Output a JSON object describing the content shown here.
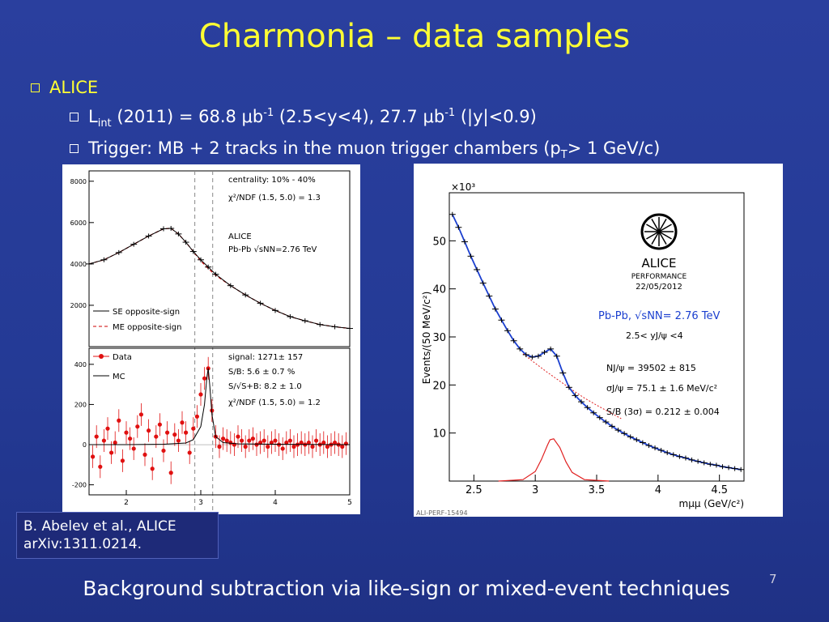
{
  "slide": {
    "title": "Charmonia – data samples",
    "bullet1": "ALICE",
    "sub1": {
      "l": "L",
      "int": "int",
      "a": " (2011) = 68.8 ",
      "mu1": "μ",
      "b1": "b",
      "exp1": "-1",
      "c": " (2.5<y<4), 27.7 ",
      "mu2": "μ",
      "b2": "b",
      "exp2": "-1",
      "d": " (|y|<0.9)"
    },
    "sub2": {
      "a": "Trigger: MB + 2 tracks in the muon trigger chambers (p",
      "t": "T",
      "b": "> 1 GeV/c)"
    },
    "citation_line1": "B. Abelev et al., ALICE",
    "citation_line2": "arXiv:1311.0214.",
    "footer": "Background subtraction via like-sign or mixed-event techniques",
    "page_number": "7",
    "colors": {
      "background": "#243a95",
      "title": "#ffff33",
      "text": "#ffffff"
    }
  },
  "chart_data": [
    {
      "type": "line",
      "panel": "left-top",
      "x_range": [
        1.5,
        5.0
      ],
      "ylim": [
        0,
        8500
      ],
      "yticks": [
        "8000",
        "6000",
        "4000",
        "2000"
      ],
      "annotations": [
        "centrality: 10% - 40%",
        "χ²/NDF (1.5, 5.0) = 1.3",
        "ALICE",
        "Pb-Pb √sNN=2.76 TeV"
      ],
      "legend": [
        "SE opposite-sign",
        "ME opposite-sign"
      ],
      "vlines": [
        2.92,
        3.16
      ],
      "series": [
        {
          "name": "SE opposite-sign",
          "x": [
            1.5,
            1.7,
            1.9,
            2.1,
            2.3,
            2.5,
            2.6,
            2.7,
            2.8,
            2.9,
            3.0,
            3.1,
            3.2,
            3.4,
            3.6,
            3.8,
            4.0,
            4.2,
            4.4,
            4.6,
            4.8,
            5.0
          ],
          "values": [
            4000,
            4200,
            4550,
            4950,
            5350,
            5700,
            5720,
            5450,
            5050,
            4600,
            4200,
            3850,
            3500,
            2950,
            2500,
            2100,
            1750,
            1450,
            1250,
            1070,
            960,
            880
          ]
        },
        {
          "name": "ME opposite-sign",
          "x": [
            1.5,
            1.7,
            1.9,
            2.1,
            2.3,
            2.5,
            2.6,
            2.7,
            2.8,
            2.9,
            3.0,
            3.1,
            3.2,
            3.4,
            3.6,
            3.8,
            4.0,
            4.2,
            4.4,
            4.6,
            4.8,
            5.0
          ],
          "values": [
            4000,
            4200,
            4550,
            4950,
            5350,
            5700,
            5720,
            5450,
            5050,
            4600,
            4150,
            3780,
            3450,
            2950,
            2500,
            2100,
            1750,
            1450,
            1250,
            1070,
            960,
            880
          ]
        }
      ]
    },
    {
      "type": "scatter",
      "panel": "left-bottom",
      "x_range": [
        1.5,
        5.0
      ],
      "xticks": [
        "2",
        "3",
        "4",
        "5"
      ],
      "ylim": [
        -250,
        480
      ],
      "yticks": [
        "400",
        "200",
        "0",
        "-200"
      ],
      "annotations": [
        "signal: 1271± 157",
        "S/B: 5.6 ± 0.7 %",
        "S/√S+B: 8.2 ± 1.0",
        "χ²/NDF (1.5, 5.0) = 1.2"
      ],
      "legend": [
        "Data",
        "MC"
      ],
      "series": [
        {
          "name": "Data",
          "x": [
            1.55,
            1.6,
            1.65,
            1.7,
            1.75,
            1.8,
            1.85,
            1.9,
            1.95,
            2.0,
            2.05,
            2.1,
            2.15,
            2.2,
            2.25,
            2.3,
            2.35,
            2.4,
            2.45,
            2.5,
            2.55,
            2.6,
            2.65,
            2.7,
            2.75,
            2.8,
            2.85,
            2.9,
            2.95,
            3.0,
            3.05,
            3.1,
            3.15,
            3.2,
            3.25,
            3.3,
            3.35,
            3.4,
            3.45,
            3.5,
            3.55,
            3.6,
            3.65,
            3.7,
            3.75,
            3.8,
            3.85,
            3.9,
            3.95,
            4.0,
            4.05,
            4.1,
            4.15,
            4.2,
            4.25,
            4.3,
            4.35,
            4.4,
            4.45,
            4.5,
            4.55,
            4.6,
            4.65,
            4.7,
            4.75,
            4.8,
            4.85,
            4.9,
            4.95
          ],
          "values": [
            -60,
            40,
            -110,
            20,
            80,
            -40,
            10,
            120,
            -80,
            60,
            30,
            -20,
            90,
            150,
            -50,
            70,
            -120,
            40,
            100,
            -30,
            60,
            -140,
            50,
            20,
            110,
            60,
            -40,
            80,
            140,
            250,
            330,
            380,
            170,
            40,
            -10,
            30,
            20,
            10,
            0,
            40,
            20,
            -10,
            20,
            30,
            0,
            10,
            20,
            -10,
            10,
            20,
            0,
            -20,
            10,
            20,
            -10,
            0,
            10,
            0,
            10,
            -10,
            20,
            0,
            10,
            -10,
            0,
            10,
            0,
            -10,
            5
          ]
        },
        {
          "name": "MC",
          "x": [
            1.5,
            2.0,
            2.5,
            2.8,
            2.9,
            3.0,
            3.05,
            3.08,
            3.1,
            3.12,
            3.15,
            3.2,
            3.3,
            3.5,
            4.0,
            5.0
          ],
          "values": [
            0,
            0,
            2,
            8,
            25,
            90,
            200,
            330,
            380,
            300,
            150,
            40,
            10,
            4,
            2,
            0
          ]
        }
      ]
    },
    {
      "type": "line",
      "panel": "right",
      "x_range": [
        2.3,
        4.7
      ],
      "xticks": [
        "2.5",
        "3",
        "3.5",
        "4",
        "4.5"
      ],
      "xlabel": "mμμ (GeV/c²)",
      "ylabel": "Events/(50 MeV/c²)",
      "ylim": [
        0,
        60
      ],
      "yticks": [
        "10",
        "20",
        "30",
        "40",
        "50"
      ],
      "y_multiplier": "×10³",
      "annotations": [
        "ALICE",
        "PERFORMANCE",
        "22/05/2012",
        "Pb-Pb, √sNN= 2.76 TeV",
        "2.5< yJ/ψ <4",
        "NJ/ψ = 39502 ± 815",
        "σJ/ψ = 75.1 ± 1.6 MeV/c²",
        "S/B (3σ) = 0.212 ± 0.004",
        "ALI-PERF-15494"
      ],
      "series": [
        {
          "name": "data",
          "x": [
            2.325,
            2.375,
            2.425,
            2.475,
            2.525,
            2.575,
            2.625,
            2.675,
            2.725,
            2.775,
            2.825,
            2.875,
            2.925,
            2.975,
            3.025,
            3.075,
            3.125,
            3.175,
            3.225,
            3.275,
            3.325,
            3.375,
            3.425,
            3.475,
            3.525,
            3.575,
            3.625,
            3.675,
            3.725,
            3.775,
            3.825,
            3.875,
            3.925,
            3.975,
            4.025,
            4.075,
            4.125,
            4.175,
            4.225,
            4.275,
            4.325,
            4.375,
            4.425,
            4.475,
            4.525,
            4.575,
            4.625,
            4.675
          ],
          "values": [
            55.5,
            52.8,
            49.8,
            46.8,
            44.0,
            41.2,
            38.5,
            35.8,
            33.5,
            31.3,
            29.2,
            27.5,
            26.3,
            25.8,
            26.0,
            26.8,
            27.5,
            26.0,
            22.5,
            19.5,
            17.8,
            16.5,
            15.3,
            14.2,
            13.2,
            12.3,
            11.4,
            10.6,
            9.9,
            9.2,
            8.6,
            8.0,
            7.4,
            6.9,
            6.4,
            5.9,
            5.5,
            5.1,
            4.8,
            4.4,
            4.1,
            3.8,
            3.5,
            3.3,
            3.0,
            2.8,
            2.6,
            2.4
          ]
        },
        {
          "name": "background",
          "x": [
            2.9,
            3.0,
            3.1,
            3.2,
            3.3,
            3.4,
            3.5,
            3.6,
            3.7
          ],
          "values": [
            26.5,
            24.5,
            22.6,
            20.8,
            19.0,
            17.3,
            15.8,
            14.4,
            13.0
          ]
        },
        {
          "name": "signal",
          "x": [
            2.7,
            2.9,
            3.0,
            3.05,
            3.1,
            3.12,
            3.15,
            3.2,
            3.25,
            3.3,
            3.4,
            3.6
          ],
          "values": [
            0,
            0.3,
            2.0,
            4.5,
            7.5,
            8.6,
            8.8,
            7.0,
            4.0,
            1.8,
            0.3,
            0
          ]
        }
      ]
    }
  ]
}
